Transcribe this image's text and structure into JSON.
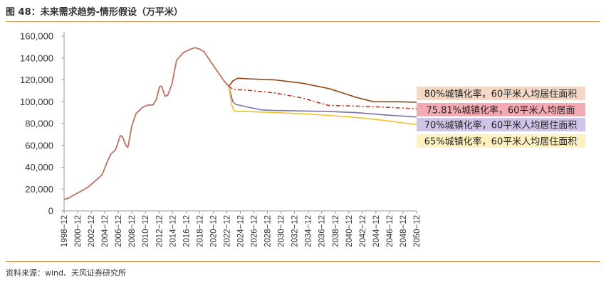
{
  "figure": {
    "title": "图 48：未来需求趋势-情形假设（万平米）",
    "source": "资料来源：wind、天风证券研究所"
  },
  "chart_data": {
    "type": "line",
    "ylim": [
      0,
      160000
    ],
    "yticks": [
      "0",
      "20,000",
      "40,000",
      "60,000",
      "80,000",
      "100,000",
      "120,000",
      "140,000",
      "160,000"
    ],
    "xticks": [
      "1998−12",
      "2000−12",
      "2002−12",
      "2004−12",
      "2006−12",
      "2008−12",
      "2010−12",
      "2012−12",
      "2014−12",
      "2016−12",
      "2018−12",
      "2020−12",
      "2022−12",
      "2024−12",
      "2026−12",
      "2028−12",
      "2030−12",
      "2032−12",
      "2034−12",
      "2036−12",
      "2038−12",
      "2040−12",
      "2042−12",
      "2044−12",
      "2046−12",
      "2048−12",
      "2050−12"
    ],
    "x_range": [
      1998.9,
      2050.9
    ],
    "history": {
      "name": "",
      "color": "#c07060",
      "points": [
        [
          1998.9,
          10500
        ],
        [
          1999.5,
          11500
        ],
        [
          2000.5,
          15000
        ],
        [
          2001.5,
          18500
        ],
        [
          2002.5,
          22000
        ],
        [
          2003.5,
          27500
        ],
        [
          2004.5,
          33000
        ],
        [
          2005.2,
          44000
        ],
        [
          2005.8,
          52000
        ],
        [
          2006.5,
          56000
        ],
        [
          2007.2,
          69000
        ],
        [
          2007.5,
          68000
        ],
        [
          2008.0,
          60000
        ],
        [
          2008.3,
          58000
        ],
        [
          2008.9,
          78000
        ],
        [
          2009.5,
          89000
        ],
        [
          2010.5,
          95000
        ],
        [
          2011.3,
          97000
        ],
        [
          2012.0,
          97000
        ],
        [
          2012.5,
          102000
        ],
        [
          2013.0,
          114000
        ],
        [
          2013.3,
          114000
        ],
        [
          2013.8,
          105000
        ],
        [
          2014.2,
          106000
        ],
        [
          2014.8,
          116000
        ],
        [
          2015.5,
          138000
        ],
        [
          2016.5,
          145000
        ],
        [
          2017.5,
          148000
        ],
        [
          2018.2,
          149500
        ],
        [
          2018.8,
          148500
        ],
        [
          2019.5,
          146000
        ],
        [
          2020.5,
          137000
        ],
        [
          2021.5,
          128000
        ],
        [
          2022.5,
          119000
        ],
        [
          2023.2,
          114000
        ]
      ]
    },
    "series": [
      {
        "name": "80%城镇化率，60平米人均居住面积",
        "color": "#8b4513",
        "dash": "",
        "points": [
          [
            2023.2,
            114000
          ],
          [
            2023.8,
            119000
          ],
          [
            2024.5,
            121500
          ],
          [
            2026,
            121000
          ],
          [
            2030,
            120000
          ],
          [
            2034,
            117000
          ],
          [
            2038,
            112000
          ],
          [
            2042,
            104000
          ],
          [
            2044.5,
            100000
          ],
          [
            2048,
            100000
          ],
          [
            2050.9,
            99500
          ]
        ]
      },
      {
        "name": "75.81%城镇化率，60平米人均居面",
        "color": "#c0392b",
        "dash": "6,3,2,3",
        "points": [
          [
            2023.2,
            114000
          ],
          [
            2023.8,
            111500
          ],
          [
            2026,
            110500
          ],
          [
            2030,
            108000
          ],
          [
            2034,
            103500
          ],
          [
            2036.5,
            99000
          ],
          [
            2038,
            96500
          ],
          [
            2042,
            96000
          ],
          [
            2046,
            95000
          ],
          [
            2050.9,
            93500
          ]
        ]
      },
      {
        "name": "70%城镇化率，60平米人均居住面积",
        "color": "#7c6fb0",
        "dash": "",
        "points": [
          [
            2023.2,
            114000
          ],
          [
            2023.8,
            100000
          ],
          [
            2024.2,
            97500
          ],
          [
            2025,
            96500
          ],
          [
            2026,
            95000
          ],
          [
            2028,
            92500
          ],
          [
            2030,
            92000
          ],
          [
            2034,
            91500
          ],
          [
            2038,
            91000
          ],
          [
            2042,
            90000
          ],
          [
            2046,
            88000
          ],
          [
            2050.9,
            86000
          ]
        ]
      },
      {
        "name": "65%城镇化率，60平米人均居住面积",
        "color": "#f2c224",
        "dash": "",
        "points": [
          [
            2023.2,
            114000
          ],
          [
            2023.6,
            98000
          ],
          [
            2023.9,
            92000
          ],
          [
            2024.3,
            91000
          ],
          [
            2026,
            91000
          ],
          [
            2030,
            90000
          ],
          [
            2034,
            89000
          ],
          [
            2038,
            87500
          ],
          [
            2042,
            85500
          ],
          [
            2046,
            83000
          ],
          [
            2050.9,
            79000
          ]
        ]
      }
    ],
    "legend_fills": [
      "#f3d8c6",
      "#f4aab3",
      "#cfc3e8",
      "#fdf2bf"
    ],
    "grid": false,
    "legend": "right"
  }
}
